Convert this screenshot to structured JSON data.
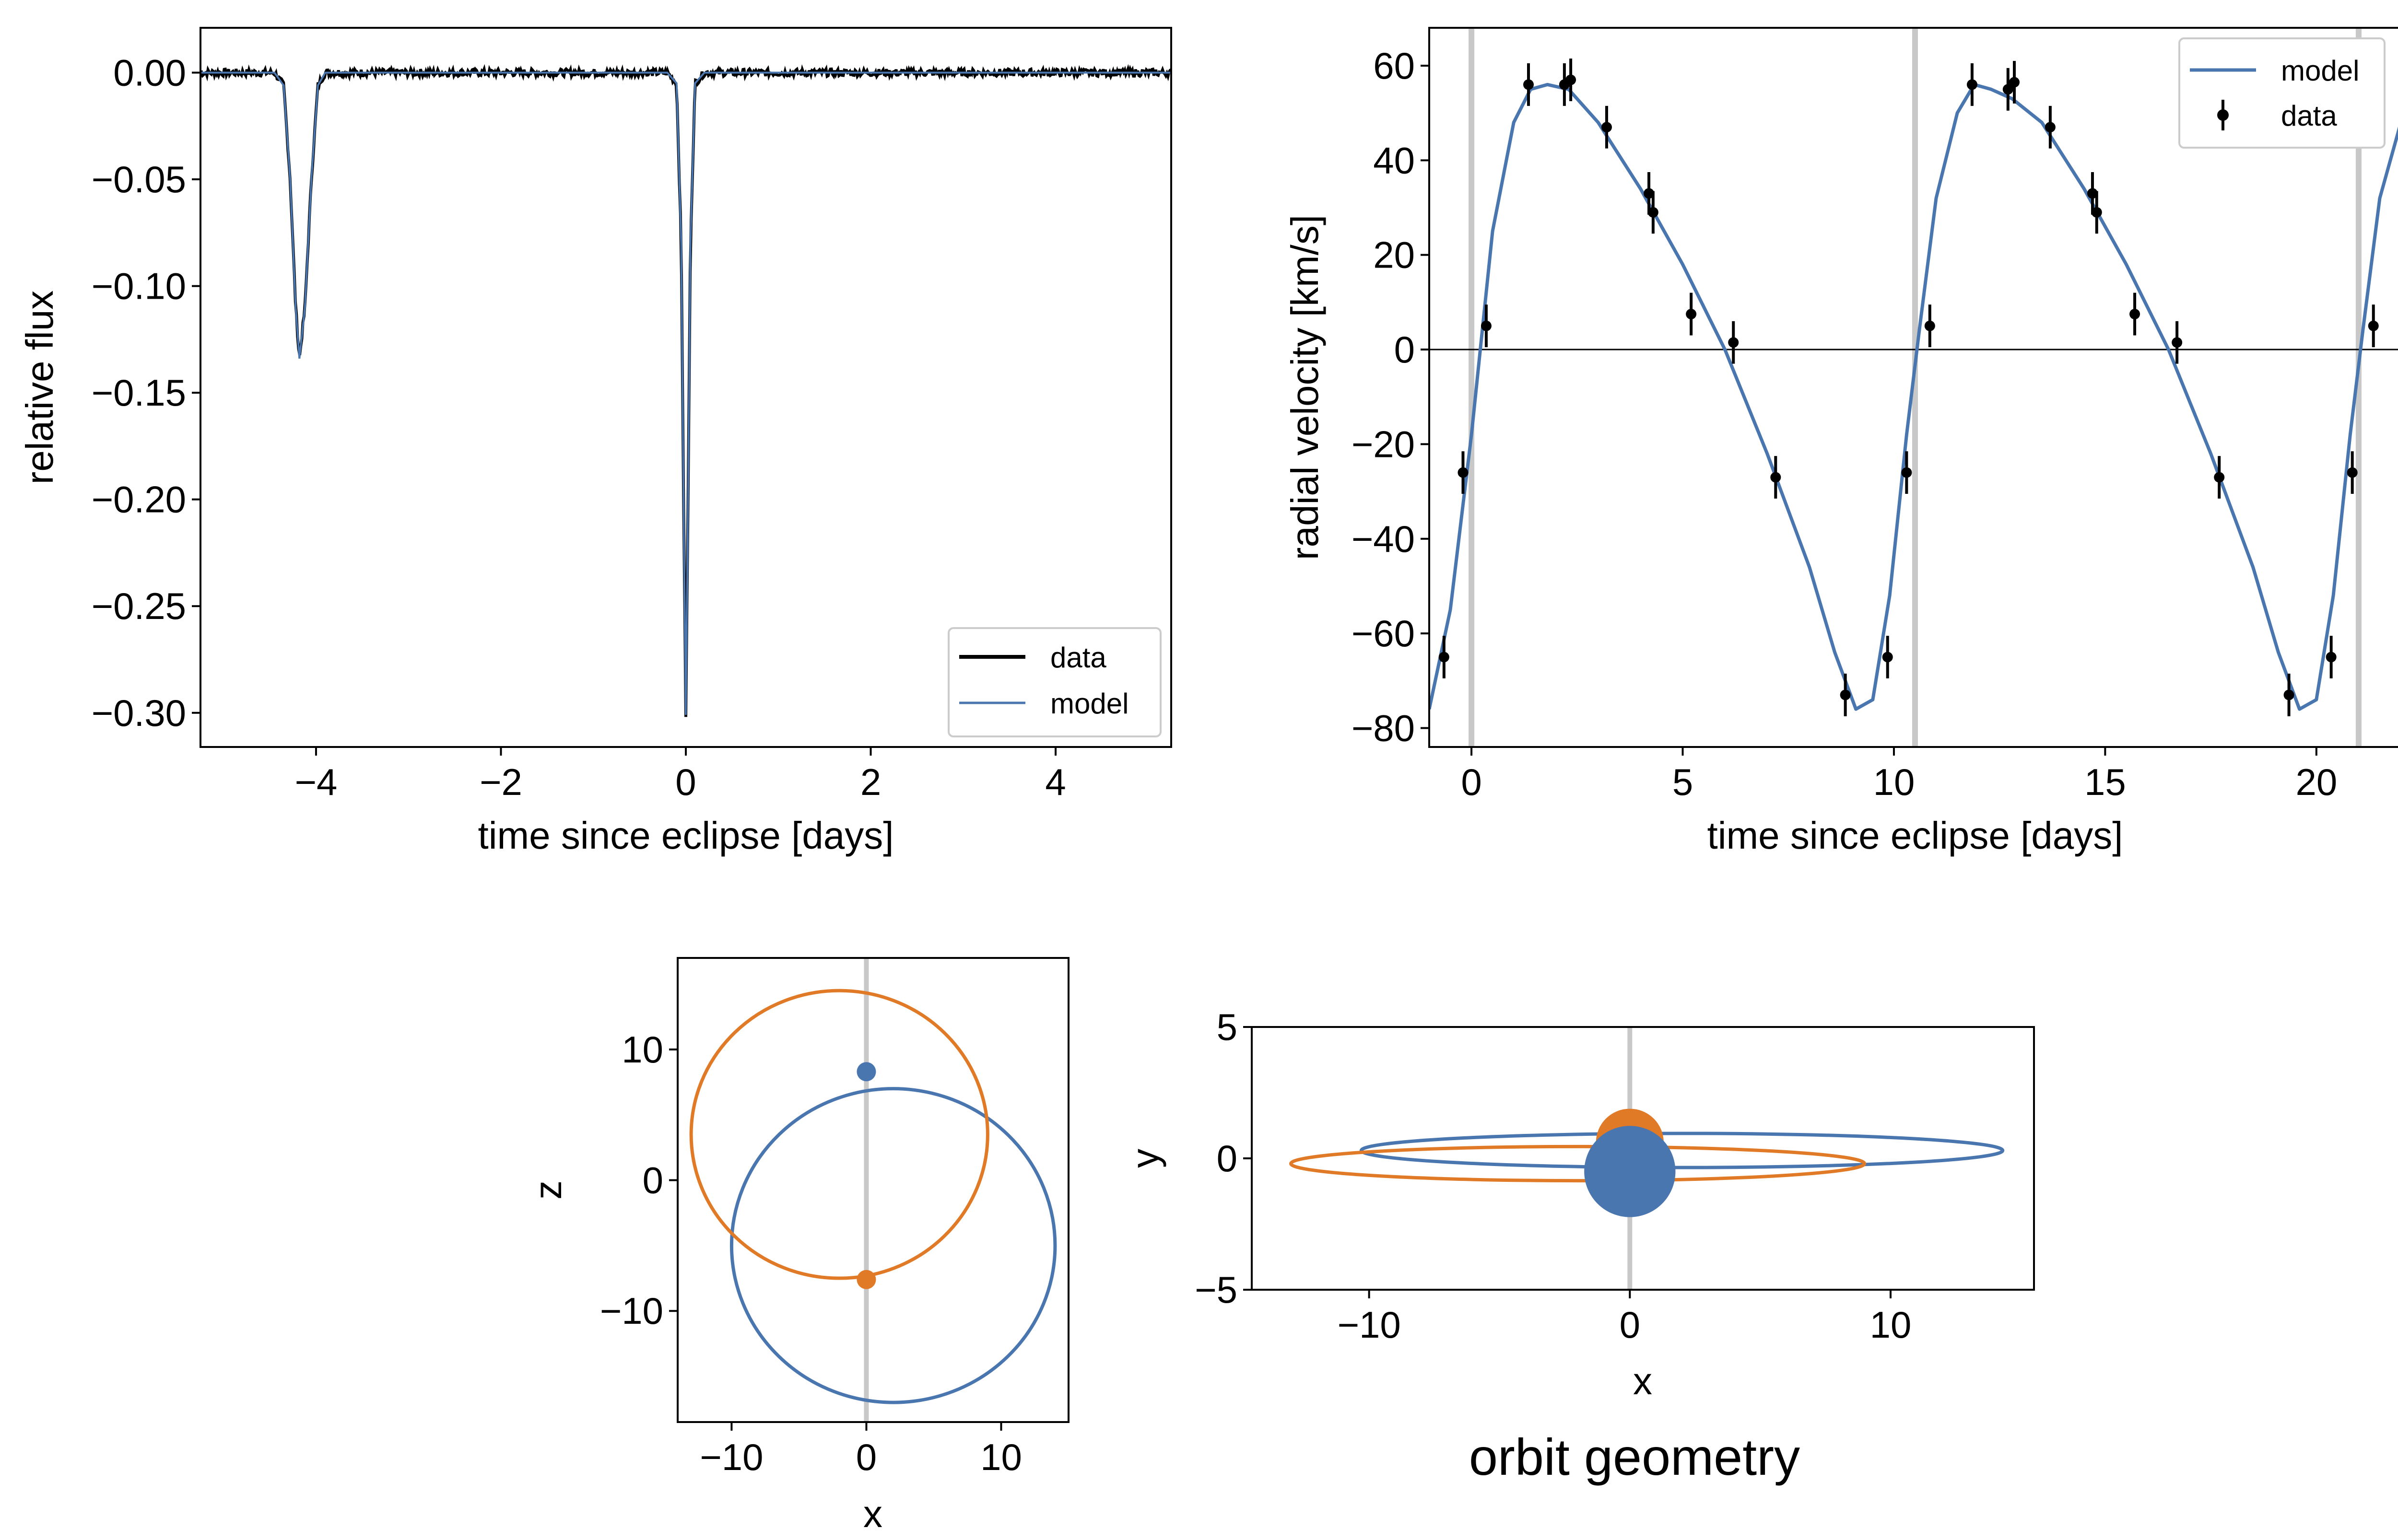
{
  "colors": {
    "data": "#000000",
    "model": "#4a76b0",
    "primary": "#4a76b0",
    "secondary": "#e07a26",
    "marker_line": "#c8c8c8",
    "zero_line": "#000000"
  },
  "figure_caption": "orbit geometry",
  "chart_data": [
    {
      "id": "lightcurve",
      "type": "line",
      "xlabel": "time since eclipse [days]",
      "ylabel": "relative flux",
      "xlim": [
        -5.25,
        5.25
      ],
      "ylim": [
        -0.316,
        0.021
      ],
      "xticks": [
        -4,
        -2,
        0,
        2,
        4
      ],
      "xtick_labels": [
        "−4",
        "−2",
        "0",
        "2",
        "4"
      ],
      "yticks": [
        0.0,
        -0.05,
        -0.1,
        -0.15,
        -0.2,
        -0.25,
        -0.3
      ],
      "ytick_labels": [
        "0.00",
        "−0.05",
        "−0.10",
        "−0.15",
        "−0.20",
        "−0.25",
        "−0.30"
      ],
      "grid": false,
      "legend": {
        "position": "lower-right",
        "entries": [
          "data",
          "model"
        ]
      },
      "series": [
        {
          "name": "data",
          "x": [
            -5.25,
            -4.45,
            -4.35,
            -4.28,
            -4.22,
            -4.18,
            -4.12,
            -4.05,
            -3.98,
            -3.9,
            -3.8,
            -0.2,
            -0.1,
            -0.05,
            -0.02,
            0.0,
            0.02,
            0.05,
            0.1,
            0.2,
            5.25
          ],
          "y": [
            0.0,
            0.0,
            -0.006,
            -0.05,
            -0.11,
            -0.134,
            -0.11,
            -0.05,
            -0.006,
            0.0,
            0.0,
            0.0,
            -0.005,
            -0.08,
            -0.22,
            -0.301,
            -0.22,
            -0.08,
            -0.005,
            0.0,
            0.0
          ]
        },
        {
          "name": "model",
          "x": [
            -5.25,
            -4.45,
            -4.35,
            -4.28,
            -4.22,
            -4.18,
            -4.12,
            -4.05,
            -3.98,
            -3.9,
            -3.8,
            -0.2,
            -0.1,
            -0.05,
            -0.02,
            0.0,
            0.02,
            0.05,
            0.1,
            0.2,
            5.25
          ],
          "y": [
            0.0,
            0.0,
            -0.006,
            -0.05,
            -0.11,
            -0.134,
            -0.11,
            -0.05,
            -0.006,
            0.0,
            0.0,
            0.0,
            -0.005,
            -0.08,
            -0.22,
            -0.301,
            -0.22,
            -0.08,
            -0.005,
            0.0,
            0.0
          ]
        }
      ]
    },
    {
      "id": "radial_velocity",
      "type": "line",
      "xlabel": "time since eclipse [days]",
      "ylabel": "radial velocity [km/s]",
      "xlim": [
        -1.0,
        22.0
      ],
      "ylim": [
        -84,
        68
      ],
      "xticks": [
        0,
        5,
        10,
        15,
        20
      ],
      "xtick_labels": [
        "0",
        "5",
        "10",
        "15",
        "20"
      ],
      "yticks": [
        60,
        40,
        20,
        0,
        -20,
        -40,
        -60,
        -80
      ],
      "ytick_labels": [
        "60",
        "40",
        "20",
        "0",
        "−20",
        "−40",
        "−60",
        "−80"
      ],
      "grid": false,
      "legend": {
        "position": "top-right",
        "entries": [
          "model",
          "data"
        ]
      },
      "eclipse_markers": [
        0.0,
        10.5,
        21.0
      ],
      "period_days": 10.5,
      "series": [
        {
          "name": "model",
          "x": [
            -1.0,
            -0.5,
            0.0,
            0.5,
            1.0,
            1.4,
            1.8,
            2.3,
            3.0,
            4.0,
            5.0,
            6.0,
            7.0,
            8.0,
            8.6,
            9.1,
            9.5,
            9.9,
            10.3,
            10.6,
            11.0,
            11.5,
            11.9,
            12.3,
            12.8,
            13.5,
            14.5,
            15.5,
            16.5,
            17.5,
            18.5,
            19.1,
            19.6,
            20.0,
            20.4,
            20.8,
            21.1,
            21.5,
            22.0
          ],
          "y": [
            -76,
            -55,
            -18,
            25,
            48,
            55,
            56,
            55,
            48,
            34,
            18,
            0,
            -22,
            -46,
            -64,
            -76,
            -74,
            -52,
            -18,
            4,
            32,
            50,
            56,
            55,
            53,
            48,
            34,
            18,
            0,
            -22,
            -46,
            -64,
            -76,
            -74,
            -52,
            -18,
            4,
            32,
            48
          ]
        },
        {
          "name": "data",
          "x": [
            -0.65,
            -0.2,
            0.35,
            1.35,
            2.2,
            2.35,
            3.2,
            4.2,
            4.3,
            5.2,
            6.2,
            7.2,
            8.85,
            9.85,
            10.3,
            10.85,
            11.85,
            12.7,
            12.85,
            13.7,
            14.7,
            14.8,
            15.7,
            16.7,
            17.7,
            19.35,
            20.35,
            20.85,
            21.35
          ],
          "y": [
            -65,
            -26,
            5,
            56,
            56,
            57,
            47,
            33,
            29,
            7.5,
            1.5,
            -27,
            -73,
            -65,
            -26,
            5,
            56,
            55,
            56.5,
            47,
            33,
            29,
            7.5,
            1.5,
            -27,
            -73,
            -65,
            -26,
            5
          ],
          "yerr": 4.5
        }
      ]
    },
    {
      "id": "orbit_xz",
      "type": "line",
      "xlabel": "x",
      "ylabel": "z",
      "xlim": [
        -14,
        15
      ],
      "ylim": [
        -18.5,
        17
      ],
      "xticks": [
        -10,
        0,
        10
      ],
      "xtick_labels": [
        "−10",
        "0",
        "10"
      ],
      "yticks": [
        10,
        0,
        -10
      ],
      "ytick_labels": [
        "10",
        "0",
        "−10"
      ],
      "grid": false,
      "series": [
        {
          "color": "primary",
          "shape": "ellipse",
          "center": [
            2.0,
            -5.0
          ],
          "radii": [
            12.0,
            12.0
          ]
        },
        {
          "color": "secondary",
          "shape": "ellipse",
          "center": [
            -2.0,
            3.5
          ],
          "radii": [
            11.0,
            11.0
          ]
        }
      ],
      "points": [
        {
          "color": "primary",
          "x": 0,
          "y": 8.3
        },
        {
          "color": "secondary",
          "x": 0,
          "y": -7.6
        }
      ]
    },
    {
      "id": "orbit_xy",
      "type": "line",
      "xlabel": "x",
      "ylabel": "y",
      "xlim": [
        -14.5,
        15.5
      ],
      "ylim": [
        -5,
        5
      ],
      "xticks": [
        -10,
        0,
        10
      ],
      "xtick_labels": [
        "−10",
        "0",
        "10"
      ],
      "yticks": [
        5,
        0,
        -5
      ],
      "ytick_labels": [
        "5",
        "0",
        "−5"
      ],
      "grid": false,
      "series": [
        {
          "color": "primary",
          "shape": "ellipse",
          "center": [
            2.0,
            0.3
          ],
          "radii": [
            12.3,
            0.65
          ]
        },
        {
          "color": "secondary",
          "shape": "ellipse",
          "center": [
            -2.0,
            -0.2
          ],
          "radii": [
            11.0,
            0.65
          ]
        }
      ],
      "points": [
        {
          "color": "secondary",
          "x": 0,
          "y": 0.6,
          "r": 1.3
        },
        {
          "color": "primary",
          "x": 0,
          "y": -0.5,
          "r": 1.75
        }
      ]
    }
  ]
}
